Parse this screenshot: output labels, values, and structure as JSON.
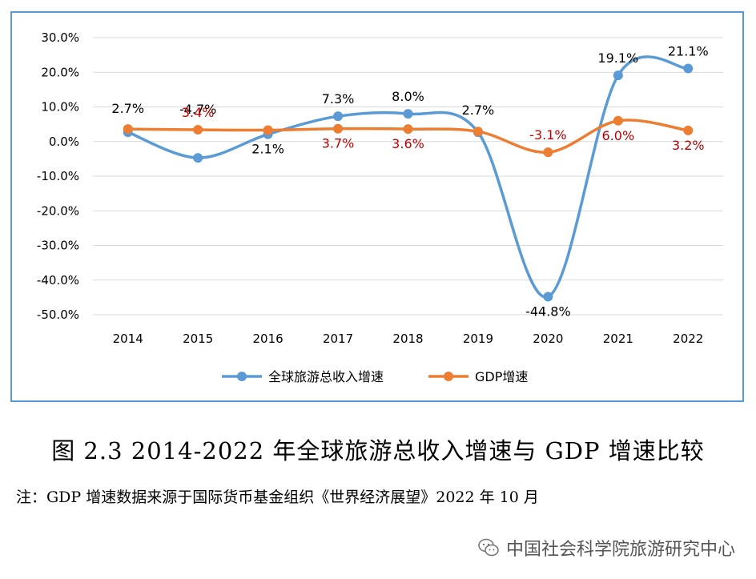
{
  "chart_data": {
    "type": "line",
    "categories": [
      "2014",
      "2015",
      "2016",
      "2017",
      "2018",
      "2019",
      "2020",
      "2021",
      "2022"
    ],
    "ylim": [
      -50,
      30
    ],
    "y_ticks": [
      "30.0%",
      "20.0%",
      "10.0%",
      "0.0%",
      "-10.0%",
      "-20.0%",
      "-30.0%",
      "-40.0%",
      "-50.0%"
    ],
    "series": [
      {
        "name": "全球旅游总收入增速",
        "color": "#5b9bd5",
        "values": [
          2.7,
          -4.7,
          2.1,
          7.3,
          8.0,
          2.7,
          -44.8,
          19.1,
          21.1
        ],
        "labels": [
          "2.7%",
          "-4.7%",
          "2.1%",
          "7.3%",
          "8.0%",
          "2.7%",
          "-44.8%",
          "19.1%",
          "21.1%"
        ],
        "label_color": "#000000"
      },
      {
        "name": "GDP增速",
        "color": "#ed7d31",
        "values": [
          3.6,
          3.4,
          3.3,
          3.7,
          3.6,
          2.9,
          -3.1,
          6.0,
          3.2
        ],
        "labels": [
          "",
          "3.4%",
          "",
          "3.7%",
          "3.6%",
          "",
          "-3.1%",
          "6.0%",
          "3.2%"
        ],
        "label_color": "#c00000"
      }
    ],
    "grid": true,
    "legend_position": "bottom"
  },
  "caption": "图 2.3 2014-2022 年全球旅游总收入增速与 GDP 增速比较",
  "note": "注：GDP 增速数据来源于国际货币基金组织《世界经济展望》2022 年 10 月",
  "watermark": "中国社会科学院旅游研究中心",
  "watermark_icon": "wechat-icon"
}
